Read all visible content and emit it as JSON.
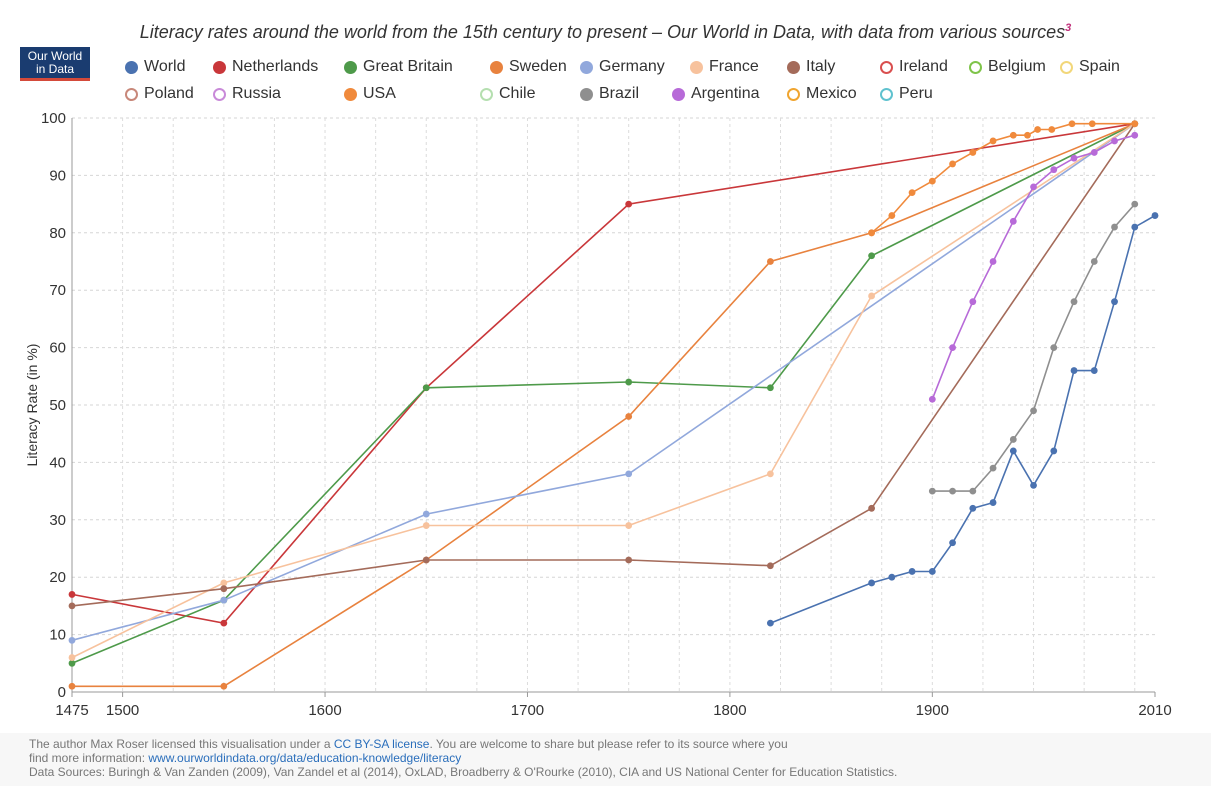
{
  "title": "Literacy rates around the world from the 15th century to present – Our World in Data, with data from various sources",
  "title_sup": "3",
  "logo": {
    "line1": "Our World",
    "line2": "in Data"
  },
  "footer": {
    "line1_a": "The author Max Roser licensed this visualisation under a ",
    "license_link": "CC BY-SA license",
    "line1_b": ". You are welcome to share but please refer to its source where you",
    "line2_a": "find more information: ",
    "info_link": "www.ourworldindata.org/data/education-knowledge/literacy",
    "line3": "Data Sources: Buringh & Van Zanden (2009), Van Zandel et al (2014), OxLAD, Broadberry & O'Rourke (2010), CIA and US National Center for Education Statistics."
  },
  "chart_data": {
    "type": "line",
    "title": "Literacy rates around the world from the 15th century to present – Our World in Data, with data from various sources",
    "xlabel": "",
    "ylabel": "Literacy Rate (in %)",
    "xlim": [
      1475,
      2010
    ],
    "ylim": [
      0,
      100
    ],
    "x_ticks": [
      1475,
      1500,
      1600,
      1700,
      1800,
      1900,
      2010
    ],
    "y_ticks": [
      0,
      10,
      20,
      30,
      40,
      50,
      60,
      70,
      80,
      90,
      100
    ],
    "grid": true,
    "legend": [
      {
        "name": "World",
        "color": "#4a72b0",
        "filled": true
      },
      {
        "name": "Netherlands",
        "color": "#c9373a",
        "filled": true
      },
      {
        "name": "Great Britain",
        "color": "#4e9a4a",
        "filled": true
      },
      {
        "name": "Sweden",
        "color": "#e8823e",
        "filled": true
      },
      {
        "name": "Germany",
        "color": "#91a8dc",
        "filled": true
      },
      {
        "name": "France",
        "color": "#f7c29d",
        "filled": true
      },
      {
        "name": "Italy",
        "color": "#a46b5a",
        "filled": true
      },
      {
        "name": "Ireland",
        "color": "#d94f4f",
        "filled": false
      },
      {
        "name": "Belgium",
        "color": "#7fc44a",
        "filled": false
      },
      {
        "name": "Spain",
        "color": "#f2d77a",
        "filled": false
      },
      {
        "name": "Poland",
        "color": "#c8887a",
        "filled": false
      },
      {
        "name": "Russia",
        "color": "#c98ad9",
        "filled": false
      },
      {
        "name": "USA",
        "color": "#f08a3c",
        "filled": true
      },
      {
        "name": "Chile",
        "color": "#b5dfb0",
        "filled": false
      },
      {
        "name": "Brazil",
        "color": "#8f8f8f",
        "filled": true
      },
      {
        "name": "Argentina",
        "color": "#b76ad8",
        "filled": true
      },
      {
        "name": "Mexico",
        "color": "#f0a530",
        "filled": false
      },
      {
        "name": "Peru",
        "color": "#5fc2cf",
        "filled": false
      }
    ],
    "series": [
      {
        "name": "World",
        "color": "#4a72b0",
        "x": [
          1820,
          1870,
          1880,
          1890,
          1900,
          1910,
          1920,
          1930,
          1940,
          1950,
          1960,
          1970,
          1980,
          1990,
          2000,
          2010
        ],
        "values": [
          12,
          19,
          20,
          21,
          21,
          26,
          32,
          33,
          42,
          36,
          42,
          56,
          56,
          68,
          81,
          83
        ]
      },
      {
        "name": "Netherlands",
        "color": "#c9373a",
        "x": [
          1475,
          1550,
          1650,
          1750,
          2000
        ],
        "values": [
          17,
          12,
          53,
          85,
          99
        ]
      },
      {
        "name": "Great Britain",
        "color": "#4e9a4a",
        "x": [
          1475,
          1550,
          1650,
          1750,
          1820,
          1870,
          2000
        ],
        "values": [
          5,
          16,
          53,
          54,
          53,
          76,
          99
        ]
      },
      {
        "name": "Sweden",
        "color": "#e8823e",
        "x": [
          1475,
          1550,
          1650,
          1750,
          1820,
          1870,
          2000
        ],
        "values": [
          1,
          1,
          23,
          48,
          75,
          80,
          99
        ]
      },
      {
        "name": "Germany",
        "color": "#91a8dc",
        "x": [
          1475,
          1550,
          1650,
          1750,
          2000
        ],
        "values": [
          9,
          16,
          31,
          38,
          99
        ]
      },
      {
        "name": "France",
        "color": "#f7c29d",
        "x": [
          1475,
          1550,
          1650,
          1750,
          1820,
          1870,
          2000
        ],
        "values": [
          6,
          19,
          29,
          29,
          38,
          69,
          99
        ]
      },
      {
        "name": "Italy",
        "color": "#a46b5a",
        "x": [
          1475,
          1550,
          1650,
          1750,
          1820,
          1870,
          2000
        ],
        "values": [
          15,
          18,
          23,
          23,
          22,
          32,
          99
        ]
      },
      {
        "name": "Brazil",
        "color": "#8f8f8f",
        "x": [
          1900,
          1910,
          1920,
          1930,
          1940,
          1950,
          1960,
          1970,
          1980,
          1990,
          2000
        ],
        "values": [
          35,
          35,
          35,
          39,
          44,
          49,
          60,
          68,
          75,
          81,
          85
        ]
      },
      {
        "name": "Argentina",
        "color": "#b76ad8",
        "x": [
          1900,
          1910,
          1920,
          1930,
          1940,
          1950,
          1960,
          1970,
          1980,
          1990,
          2000
        ],
        "values": [
          51,
          60,
          68,
          75,
          82,
          88,
          91,
          93,
          94,
          96,
          97
        ]
      },
      {
        "name": "USA",
        "color": "#f08a3c",
        "x": [
          1870,
          1880,
          1890,
          1900,
          1910,
          1920,
          1930,
          1940,
          1947,
          1952,
          1959,
          1969,
          1979,
          2000
        ],
        "values": [
          80,
          83,
          87,
          89,
          92,
          94,
          96,
          97,
          97,
          98,
          98,
          99,
          99,
          99
        ]
      }
    ]
  }
}
